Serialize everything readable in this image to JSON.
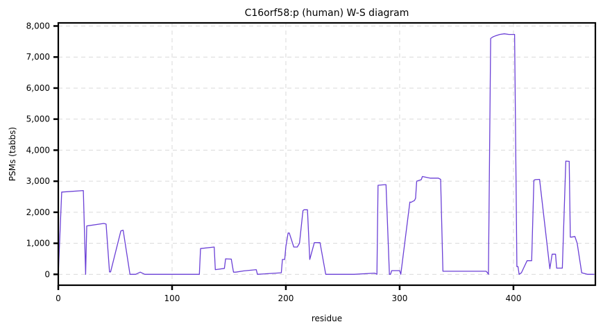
{
  "chart_data": {
    "type": "line",
    "title": "C16orf58:p (human) W-S diagram",
    "xlabel": "residue",
    "ylabel": "PSMs (tabbs)",
    "xlim": [
      0,
      472
    ],
    "ylim": [
      -350,
      8100
    ],
    "xticks": [
      0,
      100,
      200,
      300,
      400
    ],
    "yticks": [
      0,
      1000,
      2000,
      3000,
      4000,
      5000,
      6000,
      7000,
      8000
    ],
    "xtick_labels": [
      "0",
      "100",
      "200",
      "300",
      "400"
    ],
    "ytick_labels": [
      "0",
      "1,000",
      "2,000",
      "3,000",
      "4,000",
      "5,000",
      "6,000",
      "7,000",
      "8,000"
    ],
    "grid": true,
    "series": [
      {
        "color": "#6a3fd6",
        "x": [
          0,
          3,
          22,
          24,
          25,
          40,
          42,
          45,
          46,
          55,
          57,
          63,
          68,
          72,
          76,
          100,
          124,
          125,
          137,
          138,
          146,
          147,
          152,
          154,
          156,
          163,
          174,
          175,
          196,
          197,
          199,
          200,
          202,
          203,
          207,
          210,
          212,
          215,
          216,
          219,
          221,
          225,
          230,
          235,
          260,
          278,
          280,
          281,
          287,
          288,
          291,
          292,
          293,
          300,
          301,
          309,
          310,
          313,
          314,
          315,
          319,
          320,
          327,
          334,
          336,
          338,
          376,
          377,
          378,
          380,
          382,
          384,
          388,
          392,
          396,
          401,
          403,
          404,
          405,
          407,
          412,
          416,
          418,
          419,
          423,
          432,
          434,
          437,
          438,
          443,
          446,
          449,
          450,
          451,
          454,
          456,
          460,
          465,
          466,
          467,
          471
        ],
        "y": [
          0,
          2650,
          2700,
          0,
          1560,
          1640,
          1620,
          80,
          80,
          1400,
          1420,
          0,
          0,
          70,
          0,
          0,
          0,
          830,
          880,
          150,
          190,
          500,
          490,
          70,
          70,
          110,
          150,
          0,
          50,
          480,
          480,
          900,
          1330,
          1330,
          880,
          880,
          1000,
          2050,
          2080,
          2080,
          480,
          1020,
          1020,
          0,
          0,
          40,
          0,
          2870,
          2890,
          2890,
          0,
          0,
          120,
          120,
          0,
          2330,
          2320,
          2380,
          2450,
          3000,
          3050,
          3150,
          3100,
          3100,
          3060,
          100,
          100,
          60,
          0,
          7600,
          7650,
          7680,
          7730,
          7750,
          7730,
          7730,
          250,
          250,
          0,
          50,
          440,
          440,
          3030,
          3050,
          3060,
          180,
          650,
          650,
          200,
          200,
          3650,
          3640,
          1200,
          1200,
          1220,
          1000,
          50,
          0,
          0,
          0,
          0
        ]
      }
    ]
  }
}
